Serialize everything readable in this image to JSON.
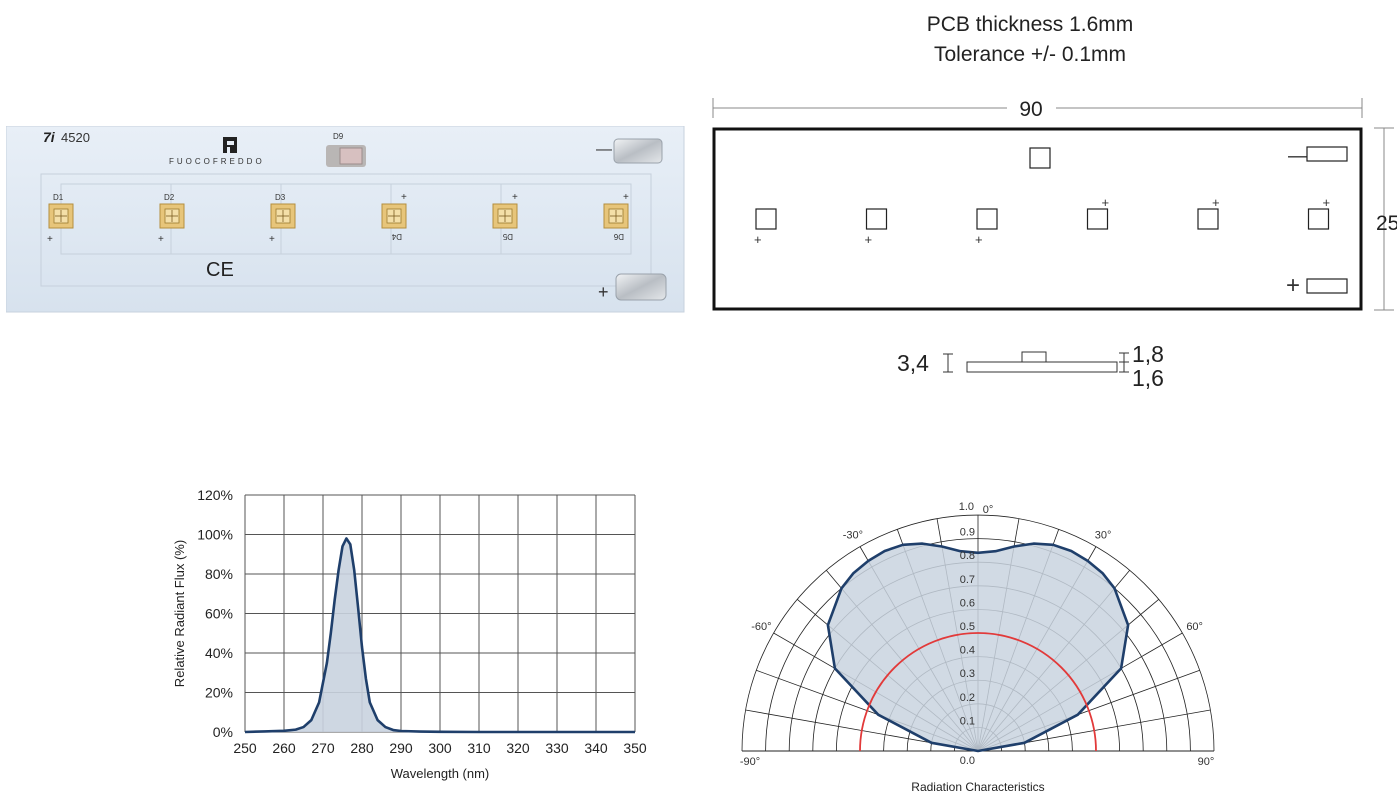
{
  "pcb_note": {
    "thickness": "PCB thickness 1.6mm",
    "tolerance": "Tolerance +/- 0.1mm"
  },
  "photo": {
    "maker_mark": "4520",
    "brand": "FUOCOFREDDO",
    "ce_mark": "CE",
    "plus_sign": "+",
    "minus_sign": "—",
    "leds": [
      {
        "label": "D1",
        "polarity": "+"
      },
      {
        "label": "D2",
        "polarity": "+"
      },
      {
        "label": "D3",
        "polarity": "+"
      },
      {
        "label": "D4",
        "polarity": "+"
      },
      {
        "label": "D5",
        "polarity": "+"
      },
      {
        "label": "D6",
        "polarity": "+"
      }
    ],
    "extra_led": "D9",
    "colors": {
      "board": "#dfe9f4",
      "led": "#e7c57a",
      "pad": "#c9cdd2"
    }
  },
  "drawing": {
    "width_dim": "90",
    "height_dim": "25",
    "minus_sign": "—",
    "plus_sign": "+",
    "side_height": "3,4",
    "side_led": "1,8",
    "side_pcb": "1,6"
  },
  "chart_data": [
    {
      "type": "line",
      "xlabel": "Wavelength (nm)",
      "ylabel": "Relative Radiant Flux (%)",
      "xlim": [
        250,
        350
      ],
      "ylim": [
        0,
        120
      ],
      "x_ticks": [
        250,
        260,
        270,
        280,
        290,
        300,
        310,
        320,
        330,
        340,
        350
      ],
      "y_ticks": [
        "0%",
        "20%",
        "40%",
        "60%",
        "80%",
        "100%",
        "120%"
      ],
      "grid": true,
      "fill": true,
      "series": [
        {
          "x": [
            250,
            255,
            260,
            263,
            265,
            267,
            269,
            271,
            272,
            273,
            274,
            275,
            276,
            277,
            278,
            279,
            280,
            281,
            282,
            284,
            286,
            288,
            290,
            295,
            300,
            310,
            320,
            330,
            340,
            350
          ],
          "y": [
            0,
            0.3,
            0.6,
            1.2,
            2.5,
            6,
            15,
            35,
            50,
            67,
            82,
            94,
            98,
            95,
            82,
            63,
            43,
            27,
            15,
            6,
            2.5,
            1,
            0.5,
            0.2,
            0.1,
            0,
            0,
            0,
            0,
            0
          ]
        }
      ],
      "colors": {
        "line": "#1f3f6b",
        "fill": "#c9d3df",
        "grid": "#555555"
      }
    },
    {
      "type": "polar",
      "title": "Radiation Characteristics",
      "angle_range": [
        -90,
        90
      ],
      "angle_labels": [
        "-90°",
        "-60°",
        "-30°",
        "0°",
        "30°",
        "60°",
        "90°"
      ],
      "radial_labels": [
        "0.0",
        "0.1",
        "0.2",
        "0.3",
        "0.4",
        "0.5",
        "0.6",
        "0.7",
        "0.8",
        "0.9",
        "1.0"
      ],
      "series": [
        {
          "angles": [
            -90,
            -80,
            -70,
            -60,
            -50,
            -40,
            -35,
            -30,
            -25,
            -20,
            -15,
            -10,
            -5,
            0,
            5,
            10,
            15,
            20,
            25,
            30,
            35,
            40,
            50,
            60,
            70,
            80,
            90
          ],
          "values": [
            0,
            0.2,
            0.45,
            0.7,
            0.83,
            0.9,
            0.92,
            0.93,
            0.935,
            0.93,
            0.91,
            0.88,
            0.85,
            0.84,
            0.85,
            0.88,
            0.91,
            0.93,
            0.935,
            0.93,
            0.92,
            0.9,
            0.83,
            0.7,
            0.45,
            0.2,
            0
          ]
        },
        {
          "angles": [
            -90,
            90
          ],
          "values": [
            0.5,
            0.5
          ]
        }
      ],
      "colors": {
        "pattern": "#1f3f6b",
        "fill": "#c9d3df",
        "reference": "#e23a3a",
        "grid": "#222222"
      }
    }
  ]
}
